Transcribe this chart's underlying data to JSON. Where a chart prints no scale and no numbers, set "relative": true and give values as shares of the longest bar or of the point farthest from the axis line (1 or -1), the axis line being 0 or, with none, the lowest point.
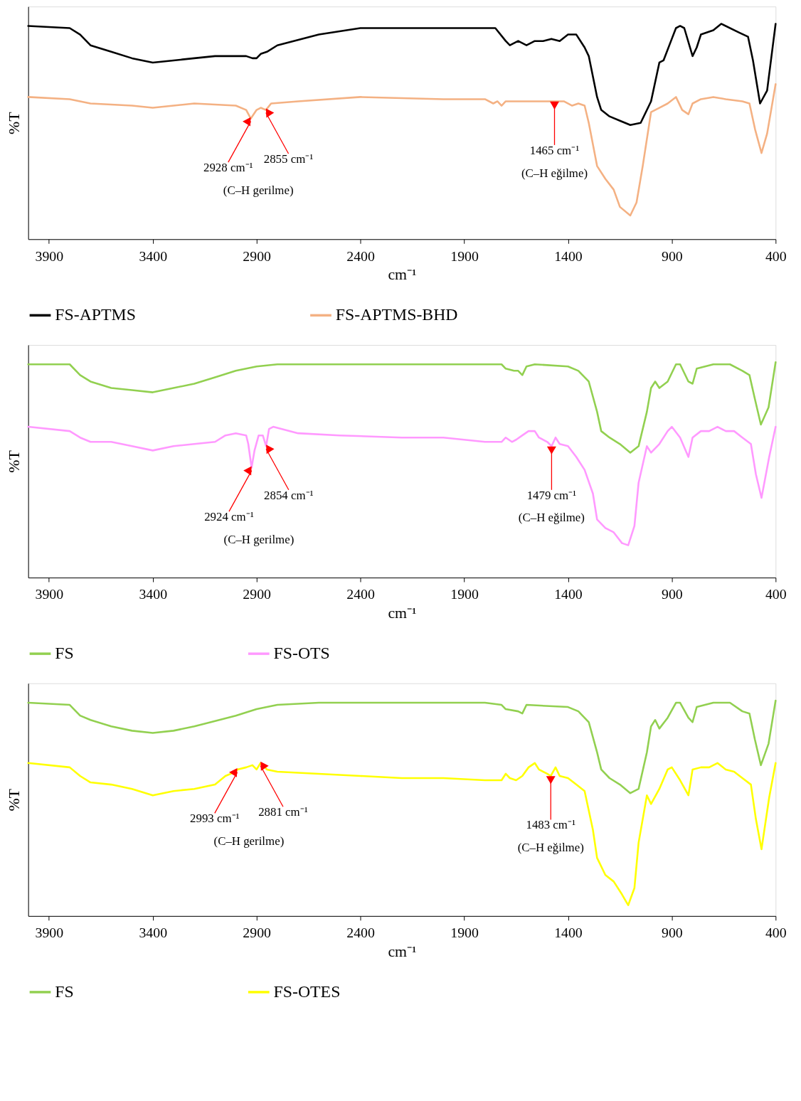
{
  "chart_data": [
    {
      "type": "line",
      "xlabel": "cm⁻¹",
      "ylabel": "%T",
      "relative": true,
      "xlim": [
        4000,
        400
      ],
      "xticks": [
        3900,
        3400,
        2900,
        2400,
        1900,
        1400,
        900,
        400
      ],
      "grid": false,
      "legend": "bottom",
      "series": [
        {
          "name": "FS-APTMS",
          "color": "#000000",
          "x": [
            4000,
            3800,
            3750,
            3700,
            3600,
            3500,
            3400,
            3300,
            3200,
            3100,
            3000,
            2950,
            2920,
            2900,
            2880,
            2850,
            2800,
            2600,
            2400,
            2200,
            2000,
            1800,
            1750,
            1700,
            1680,
            1640,
            1600,
            1560,
            1520,
            1480,
            1440,
            1400,
            1360,
            1320,
            1300,
            1260,
            1240,
            1200,
            1150,
            1100,
            1050,
            1000,
            960,
            940,
            900,
            880,
            860,
            840,
            800,
            780,
            760,
            700,
            662,
            577,
            533,
            509,
            475,
            441,
            400
          ],
          "values": [
            0.99,
            0.98,
            0.95,
            0.9,
            0.87,
            0.84,
            0.82,
            0.83,
            0.84,
            0.85,
            0.85,
            0.85,
            0.84,
            0.84,
            0.86,
            0.87,
            0.9,
            0.95,
            0.98,
            0.98,
            0.98,
            0.98,
            0.98,
            0.92,
            0.9,
            0.92,
            0.9,
            0.92,
            0.92,
            0.93,
            0.92,
            0.95,
            0.95,
            0.89,
            0.85,
            0.66,
            0.6,
            0.57,
            0.55,
            0.53,
            0.54,
            0.64,
            0.82,
            0.83,
            0.93,
            0.98,
            0.99,
            0.98,
            0.85,
            0.89,
            0.95,
            0.97,
            1.0,
            0.96,
            0.94,
            0.83,
            0.63,
            0.69,
            1.0
          ]
        },
        {
          "name": "FS-APTMS-BHD",
          "color": "#f4b183",
          "x": [
            4000,
            3800,
            3750,
            3700,
            3500,
            3400,
            3300,
            3200,
            3000,
            2950,
            2928,
            2900,
            2880,
            2855,
            2830,
            2700,
            2400,
            2000,
            1800,
            1760,
            1740,
            1720,
            1700,
            1600,
            1500,
            1465,
            1420,
            1380,
            1350,
            1320,
            1300,
            1260,
            1220,
            1180,
            1150,
            1100,
            1070,
            1040,
            1000,
            960,
            920,
            880,
            850,
            820,
            800,
            760,
            700,
            640,
            560,
            526,
            499,
            468,
            441,
            400
          ],
          "values": [
            0.66,
            0.65,
            0.64,
            0.63,
            0.62,
            0.61,
            0.62,
            0.63,
            0.62,
            0.6,
            0.56,
            0.6,
            0.61,
            0.6,
            0.63,
            0.64,
            0.66,
            0.65,
            0.65,
            0.63,
            0.64,
            0.62,
            0.64,
            0.64,
            0.64,
            0.64,
            0.64,
            0.62,
            0.63,
            0.62,
            0.54,
            0.34,
            0.28,
            0.23,
            0.15,
            0.11,
            0.17,
            0.34,
            0.59,
            0.61,
            0.63,
            0.66,
            0.6,
            0.58,
            0.63,
            0.65,
            0.66,
            0.65,
            0.64,
            0.63,
            0.51,
            0.4,
            0.49,
            0.72
          ]
        }
      ],
      "annotations": [
        {
          "text": "2928 cm⁻¹",
          "x": 2928,
          "y": 0.56
        },
        {
          "text": "2855 cm⁻¹",
          "x": 2855,
          "y": 0.6
        },
        "(C–H gerilme)",
        {
          "text": "1465 cm⁻¹",
          "x": 1465,
          "y": 0.64
        },
        "(C–H eğilme)"
      ]
    },
    {
      "type": "line",
      "xlabel": "cm⁻¹",
      "ylabel": "%T",
      "relative": true,
      "xlim": [
        4000,
        400
      ],
      "xticks": [
        3900,
        3400,
        2900,
        2400,
        1900,
        1400,
        900,
        400
      ],
      "grid": false,
      "legend": "bottom",
      "series": [
        {
          "name": "FS",
          "color": "#92d050",
          "x": [
            4000,
            3800,
            3750,
            3700,
            3600,
            3500,
            3400,
            3300,
            3200,
            3100,
            3000,
            2900,
            2800,
            2600,
            2000,
            1800,
            1720,
            1700,
            1660,
            1640,
            1620,
            1600,
            1560,
            1400,
            1350,
            1300,
            1260,
            1240,
            1200,
            1150,
            1100,
            1060,
            1020,
            1000,
            980,
            960,
            920,
            880,
            860,
            820,
            800,
            780,
            700,
            620,
            560,
            526,
            500,
            471,
            434,
            400
          ],
          "values": [
            0.99,
            0.99,
            0.94,
            0.91,
            0.88,
            0.87,
            0.86,
            0.88,
            0.9,
            0.93,
            0.96,
            0.98,
            0.99,
            0.99,
            0.99,
            0.99,
            0.99,
            0.97,
            0.96,
            0.96,
            0.94,
            0.98,
            0.99,
            0.98,
            0.96,
            0.91,
            0.77,
            0.68,
            0.65,
            0.62,
            0.58,
            0.61,
            0.77,
            0.88,
            0.91,
            0.88,
            0.91,
            0.99,
            0.99,
            0.91,
            0.9,
            0.97,
            0.99,
            0.99,
            0.96,
            0.94,
            0.83,
            0.71,
            0.79,
            1.0
          ]
        },
        {
          "name": "FS-OTS",
          "color": "#ff99ff",
          "x": [
            4000,
            3800,
            3750,
            3700,
            3600,
            3500,
            3400,
            3300,
            3200,
            3100,
            3050,
            3000,
            2950,
            2940,
            2924,
            2910,
            2890,
            2870,
            2854,
            2840,
            2820,
            2700,
            2500,
            2200,
            2000,
            1800,
            1720,
            1700,
            1670,
            1650,
            1620,
            1590,
            1560,
            1540,
            1500,
            1479,
            1460,
            1440,
            1400,
            1360,
            1320,
            1280,
            1260,
            1220,
            1180,
            1140,
            1110,
            1080,
            1060,
            1020,
            1000,
            960,
            920,
            900,
            860,
            820,
            800,
            760,
            720,
            680,
            640,
            600,
            560,
            519,
            495,
            468,
            431,
            400
          ],
          "values": [
            0.7,
            0.68,
            0.65,
            0.63,
            0.63,
            0.61,
            0.59,
            0.61,
            0.62,
            0.63,
            0.66,
            0.67,
            0.66,
            0.62,
            0.51,
            0.59,
            0.66,
            0.66,
            0.61,
            0.69,
            0.7,
            0.67,
            0.66,
            0.65,
            0.65,
            0.63,
            0.63,
            0.65,
            0.63,
            0.64,
            0.66,
            0.68,
            0.68,
            0.65,
            0.63,
            0.61,
            0.65,
            0.62,
            0.61,
            0.56,
            0.5,
            0.39,
            0.27,
            0.23,
            0.21,
            0.16,
            0.15,
            0.24,
            0.44,
            0.61,
            0.58,
            0.62,
            0.68,
            0.7,
            0.65,
            0.56,
            0.65,
            0.68,
            0.68,
            0.7,
            0.68,
            0.68,
            0.65,
            0.62,
            0.48,
            0.37,
            0.56,
            0.7
          ]
        }
      ],
      "annotations": [
        {
          "text": "2924 cm⁻¹",
          "x": 2924,
          "y": 0.51
        },
        {
          "text": "2854 cm⁻¹",
          "x": 2854,
          "y": 0.61
        },
        "(C–H gerilme)",
        {
          "text": "1479 cm⁻¹",
          "x": 1479,
          "y": 0.61
        },
        "(C–H eğilme)"
      ]
    },
    {
      "type": "line",
      "xlabel": "cm⁻¹",
      "ylabel": "%T",
      "relative": true,
      "xlim": [
        4000,
        400
      ],
      "xticks": [
        3900,
        3400,
        2900,
        2400,
        1900,
        1400,
        900,
        400
      ],
      "grid": false,
      "legend": "bottom",
      "series": [
        {
          "name": "FS",
          "color": "#92d050",
          "x": [
            4000,
            3800,
            3750,
            3700,
            3600,
            3500,
            3400,
            3300,
            3200,
            3000,
            2900,
            2800,
            2600,
            2000,
            1800,
            1720,
            1700,
            1640,
            1620,
            1600,
            1400,
            1350,
            1300,
            1260,
            1240,
            1200,
            1150,
            1100,
            1060,
            1020,
            1000,
            980,
            960,
            920,
            880,
            860,
            820,
            800,
            780,
            700,
            620,
            560,
            526,
            500,
            471,
            434,
            400
          ],
          "values": [
            0.99,
            0.98,
            0.93,
            0.91,
            0.88,
            0.86,
            0.85,
            0.86,
            0.88,
            0.93,
            0.96,
            0.98,
            0.99,
            0.99,
            0.99,
            0.98,
            0.96,
            0.95,
            0.94,
            0.98,
            0.97,
            0.95,
            0.9,
            0.76,
            0.68,
            0.64,
            0.61,
            0.57,
            0.59,
            0.76,
            0.88,
            0.91,
            0.87,
            0.92,
            0.99,
            0.99,
            0.92,
            0.9,
            0.97,
            0.99,
            0.99,
            0.95,
            0.94,
            0.82,
            0.7,
            0.8,
            1.0
          ]
        },
        {
          "name": "FS-OTES",
          "color": "#ffff00",
          "x": [
            4000,
            3800,
            3750,
            3700,
            3600,
            3500,
            3400,
            3300,
            3200,
            3100,
            3050,
            3000,
            2993,
            2950,
            2920,
            2900,
            2881,
            2850,
            2800,
            2600,
            2400,
            2200,
            2000,
            1800,
            1720,
            1700,
            1680,
            1650,
            1620,
            1590,
            1560,
            1540,
            1500,
            1483,
            1460,
            1440,
            1400,
            1360,
            1320,
            1280,
            1260,
            1220,
            1180,
            1140,
            1110,
            1080,
            1060,
            1020,
            1000,
            960,
            920,
            900,
            860,
            820,
            800,
            760,
            720,
            680,
            640,
            600,
            560,
            519,
            495,
            468,
            431,
            400
          ],
          "values": [
            0.71,
            0.69,
            0.65,
            0.62,
            0.61,
            0.59,
            0.56,
            0.58,
            0.59,
            0.61,
            0.65,
            0.67,
            0.68,
            0.69,
            0.7,
            0.68,
            0.71,
            0.68,
            0.67,
            0.66,
            0.65,
            0.64,
            0.64,
            0.63,
            0.63,
            0.66,
            0.64,
            0.63,
            0.65,
            0.69,
            0.71,
            0.68,
            0.66,
            0.65,
            0.69,
            0.65,
            0.64,
            0.61,
            0.58,
            0.4,
            0.27,
            0.19,
            0.16,
            0.1,
            0.05,
            0.13,
            0.34,
            0.56,
            0.52,
            0.59,
            0.68,
            0.69,
            0.63,
            0.56,
            0.68,
            0.69,
            0.69,
            0.71,
            0.68,
            0.67,
            0.64,
            0.61,
            0.45,
            0.31,
            0.55,
            0.71
          ]
        }
      ],
      "annotations": [
        {
          "text": "2993 cm⁻¹",
          "x": 2993,
          "y": 0.68
        },
        {
          "text": "2881 cm⁻¹",
          "x": 2881,
          "y": 0.71
        },
        "(C–H gerilme)",
        {
          "text": "1483 cm⁻¹",
          "x": 1483,
          "y": 0.65
        },
        "(C–H eğilme)"
      ]
    }
  ]
}
